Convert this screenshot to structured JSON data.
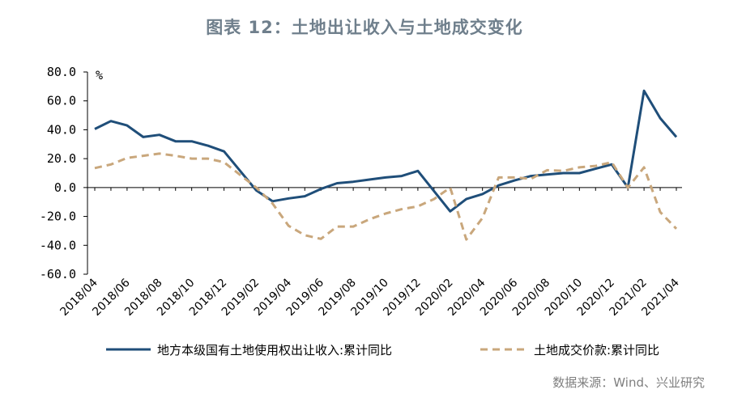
{
  "title": "图表 12：土地出让收入与土地成交变化",
  "source": "数据来源：Wind、兴业研究",
  "chart_data": {
    "type": "line",
    "unit_label": "%",
    "ylim": [
      -60,
      80
    ],
    "yticks": [
      "80.0",
      "60.0",
      "40.0",
      "20.0",
      "0.0",
      "-20.0",
      "-40.0",
      "-60.0"
    ],
    "ytick_values": [
      80,
      60,
      40,
      20,
      0,
      -20,
      -40,
      -60
    ],
    "x": [
      "2018/04",
      "2018/05",
      "2018/06",
      "2018/07",
      "2018/08",
      "2018/09",
      "2018/10",
      "2018/11",
      "2018/12",
      "2019/01",
      "2019/02",
      "2019/03",
      "2019/04",
      "2019/05",
      "2019/06",
      "2019/07",
      "2019/08",
      "2019/09",
      "2019/10",
      "2019/11",
      "2019/12",
      "2020/01",
      "2020/02",
      "2020/03",
      "2020/04",
      "2020/05",
      "2020/06",
      "2020/07",
      "2020/08",
      "2020/09",
      "2020/10",
      "2020/11",
      "2020/12",
      "2021/01",
      "2021/02",
      "2021/03",
      "2021/04"
    ],
    "xtick_labels": [
      "2018/04",
      "2018/06",
      "2018/08",
      "2018/10",
      "2018/12",
      "2019/02",
      "2019/04",
      "2019/06",
      "2019/08",
      "2019/10",
      "2019/12",
      "2020/02",
      "2020/04",
      "2020/06",
      "2020/08",
      "2020/10",
      "2020/12",
      "2021/02",
      "2021/04"
    ],
    "series": [
      {
        "name": "地方本级国有土地使用权出让收入:累计同比",
        "color": "#1f4e79",
        "style": "solid",
        "values": [
          40.5,
          46,
          43,
          35,
          36.5,
          32,
          32,
          29,
          25,
          null,
          -2,
          -9.5,
          -7.5,
          -6,
          -1,
          3,
          4,
          5.5,
          7,
          8,
          11.5,
          null,
          -16.5,
          -8,
          -4.5,
          1.5,
          5,
          8,
          9,
          10,
          10,
          13,
          16,
          0,
          67,
          48,
          35
        ]
      },
      {
        "name": "土地成交价款:累计同比",
        "color": "#c9a77c",
        "style": "dashed",
        "values": [
          13.5,
          16,
          20.5,
          22,
          23.5,
          22,
          20,
          20,
          17.5,
          null,
          0,
          -11,
          -26.5,
          -33,
          -35.5,
          -27,
          -27,
          -22,
          -18,
          -15,
          -13,
          -8,
          0,
          -36,
          -21,
          7,
          7,
          6,
          12,
          11.5,
          14,
          15,
          17.5,
          0,
          14,
          -17,
          -28.5
        ]
      }
    ],
    "grid": false,
    "legend_position": "bottom"
  }
}
